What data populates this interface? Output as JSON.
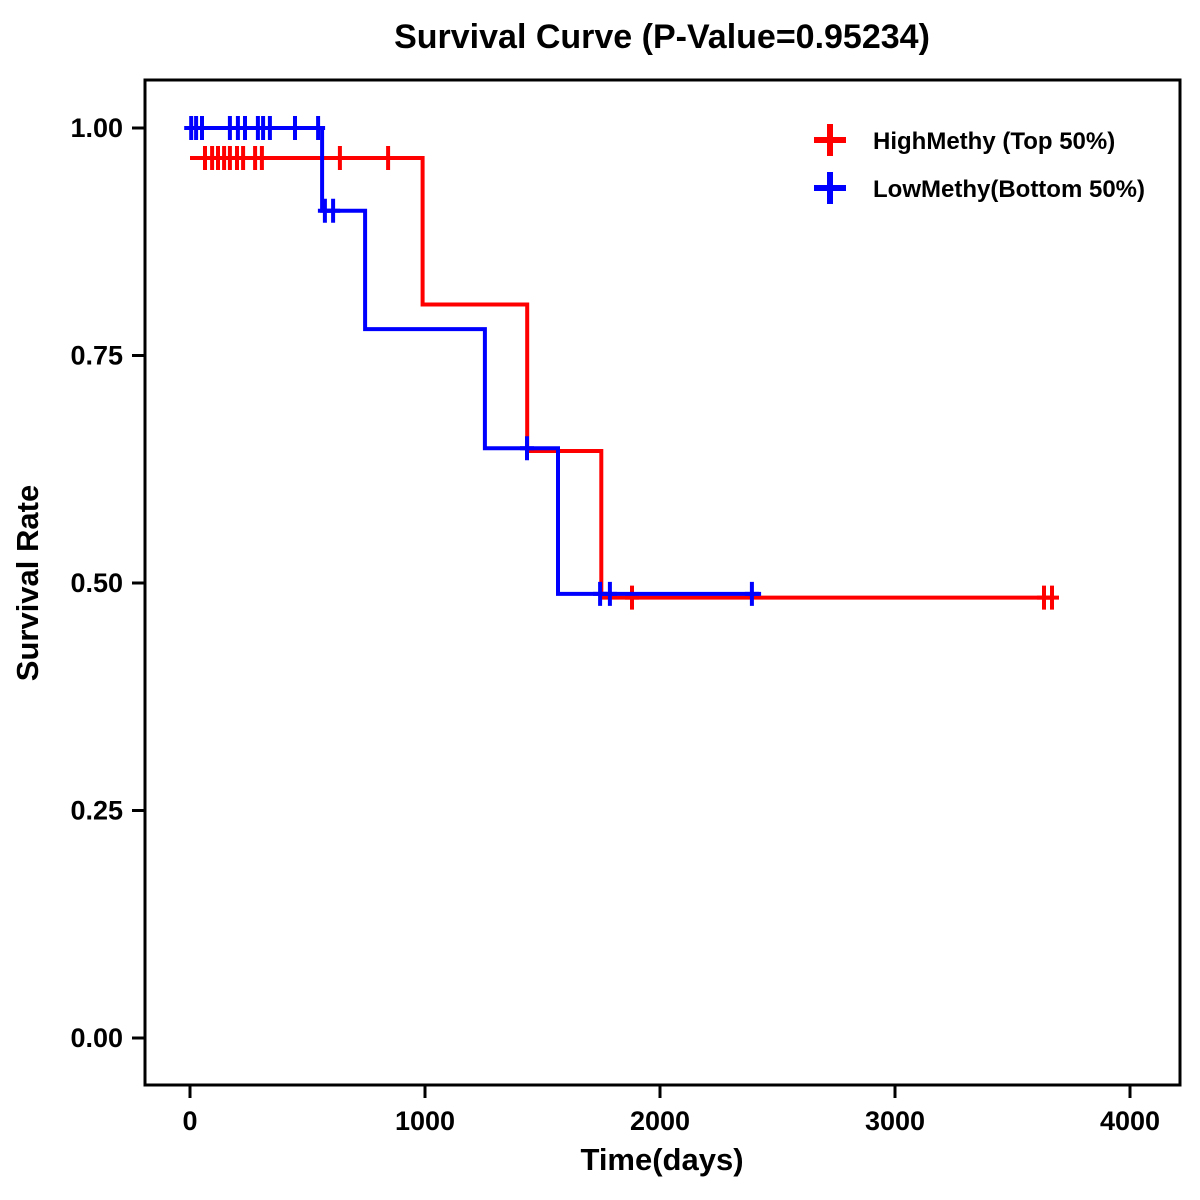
{
  "chart_data": {
    "type": "line",
    "subtype": "kaplan-meier-step",
    "title": "Survival Curve (P-Value=0.95234)",
    "xlabel": "Time(days)",
    "ylabel": "Survival Rate",
    "xlim": [
      0,
      4000
    ],
    "ylim": [
      0.0,
      1.0
    ],
    "x_ticks": [
      "0",
      "1000",
      "2000",
      "3000",
      "4000"
    ],
    "y_ticks": [
      "0.00",
      "0.25",
      "0.50",
      "0.75",
      "1.00"
    ],
    "grid": "off",
    "legend_position": "top-right",
    "legend": [
      {
        "label": "HighMethy (Top 50%)",
        "color": "#FF0000"
      },
      {
        "label": "LowMethy(Bottom 50%)",
        "color": "#0000FF"
      }
    ],
    "series": [
      {
        "name": "HighMethy (Top 50%)",
        "color": "#FF0000",
        "steps": [
          [
            0,
            0.967
          ],
          [
            990,
            0.967
          ],
          [
            990,
            0.806
          ],
          [
            1435,
            0.806
          ],
          [
            1435,
            0.645
          ],
          [
            1750,
            0.645
          ],
          [
            1750,
            0.484
          ],
          [
            3665,
            0.484
          ]
        ],
        "censors": [
          [
            64,
            0.967
          ],
          [
            94,
            0.967
          ],
          [
            119,
            0.967
          ],
          [
            145,
            0.967
          ],
          [
            170,
            0.967
          ],
          [
            200,
            0.967
          ],
          [
            226,
            0.967
          ],
          [
            277,
            0.967
          ],
          [
            306,
            0.967
          ],
          [
            638,
            0.967
          ],
          [
            843,
            0.967
          ],
          [
            1881,
            0.484
          ],
          [
            3634,
            0.484
          ],
          [
            3668,
            0.484
          ]
        ]
      },
      {
        "name": "LowMethy(Bottom 50%)",
        "color": "#0000FF",
        "steps": [
          [
            0,
            1.0
          ],
          [
            562,
            1.0
          ],
          [
            562,
            0.909
          ],
          [
            745,
            0.909
          ],
          [
            745,
            0.779
          ],
          [
            1255,
            0.779
          ],
          [
            1255,
            0.648
          ],
          [
            1566,
            0.648
          ],
          [
            1566,
            0.488
          ],
          [
            2430,
            0.488
          ]
        ],
        "censors": [
          [
            5,
            1.0
          ],
          [
            26,
            1.0
          ],
          [
            51,
            1.0
          ],
          [
            170,
            1.0
          ],
          [
            204,
            1.0
          ],
          [
            234,
            1.0
          ],
          [
            289,
            1.0
          ],
          [
            311,
            1.0
          ],
          [
            340,
            1.0
          ],
          [
            447,
            1.0
          ],
          [
            545,
            1.0
          ],
          [
            574,
            0.909
          ],
          [
            609,
            0.909
          ],
          [
            1434,
            0.648
          ],
          [
            1745,
            0.488
          ],
          [
            1787,
            0.488
          ],
          [
            2391,
            0.488
          ]
        ]
      }
    ]
  }
}
